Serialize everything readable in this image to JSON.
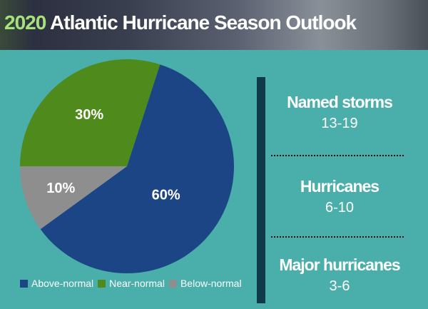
{
  "header": {
    "title_year": "2020",
    "title_rest": " Atlantic Hurricane Season Outlook"
  },
  "chart_data": {
    "type": "pie",
    "title": "2020 Atlantic Hurricane Season Outlook",
    "start_angle_deg": 18,
    "slices": [
      {
        "label": "Above-normal",
        "value": 60,
        "display": "60%",
        "color": "#1c4585"
      },
      {
        "label": "Below-normal",
        "value": 10,
        "display": "10%",
        "color": "#8e8e8e"
      },
      {
        "label": "Near-normal",
        "value": 30,
        "display": "30%",
        "color": "#4f8a1c"
      }
    ],
    "legend": [
      {
        "label": "Above-normal",
        "color": "#1c4585"
      },
      {
        "label": "Near-normal",
        "color": "#4f8a1c"
      },
      {
        "label": "Below-normal",
        "color": "#8e8e8e"
      }
    ],
    "legend_position": "bottom"
  },
  "stats": [
    {
      "label": "Named storms",
      "range": "13-19"
    },
    {
      "label": "Hurricanes",
      "range": "6-10"
    },
    {
      "label": "Major hurricanes",
      "range": "3-6"
    }
  ]
}
